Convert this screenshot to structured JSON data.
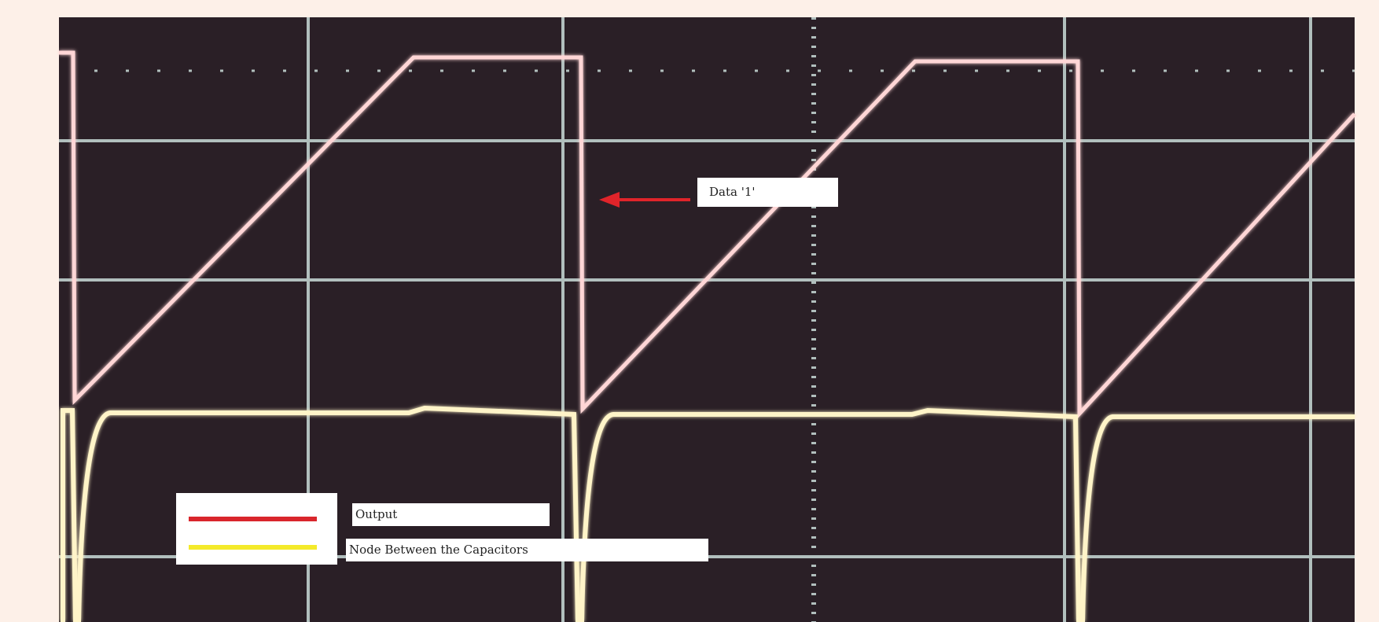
{
  "annotation": {
    "label": "Data '1'"
  },
  "legend": {
    "items": [
      {
        "label": "Output"
      },
      {
        "label": "Node Between the Capacitors"
      }
    ]
  }
}
